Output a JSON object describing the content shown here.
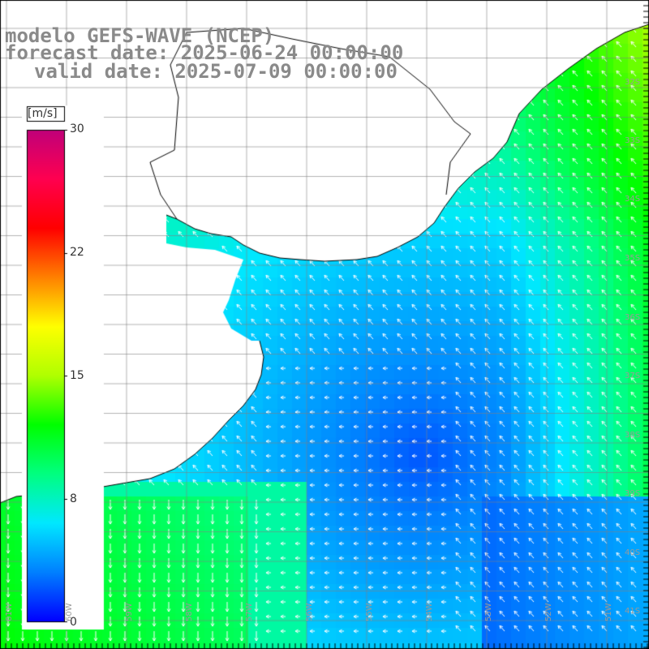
{
  "header": {
    "line1": "modelo GEFS-WAVE (NCEP)",
    "line2": "forecast date: 2025-06-24 00:00:00",
    "line3": "valid date: 2025-07-09 00:00:00"
  },
  "colorbar": {
    "unit": "[m/s]",
    "ticks": [
      "30",
      "22",
      "15",
      "8",
      "0"
    ],
    "min": 0,
    "max": 30,
    "colors": [
      "#0000ff",
      "#0080ff",
      "#00e8ff",
      "#00ff80",
      "#00ff00",
      "#b0ff00",
      "#ffff00",
      "#ff8000",
      "#ff0000",
      "#ff0050",
      "#c0007a"
    ]
  },
  "map": {
    "lat_labels": [
      "32S",
      "33S",
      "34S",
      "35S",
      "36S",
      "37S",
      "38S",
      "39S",
      "40S",
      "41S"
    ],
    "lon_labels": [
      "61W",
      "60W",
      "59W",
      "58W",
      "57W",
      "56W",
      "55W",
      "54W",
      "53W",
      "52W",
      "51W"
    ],
    "grid_color": "#808080",
    "arrow_color": "#ffffff",
    "coast_color": "#000000"
  }
}
